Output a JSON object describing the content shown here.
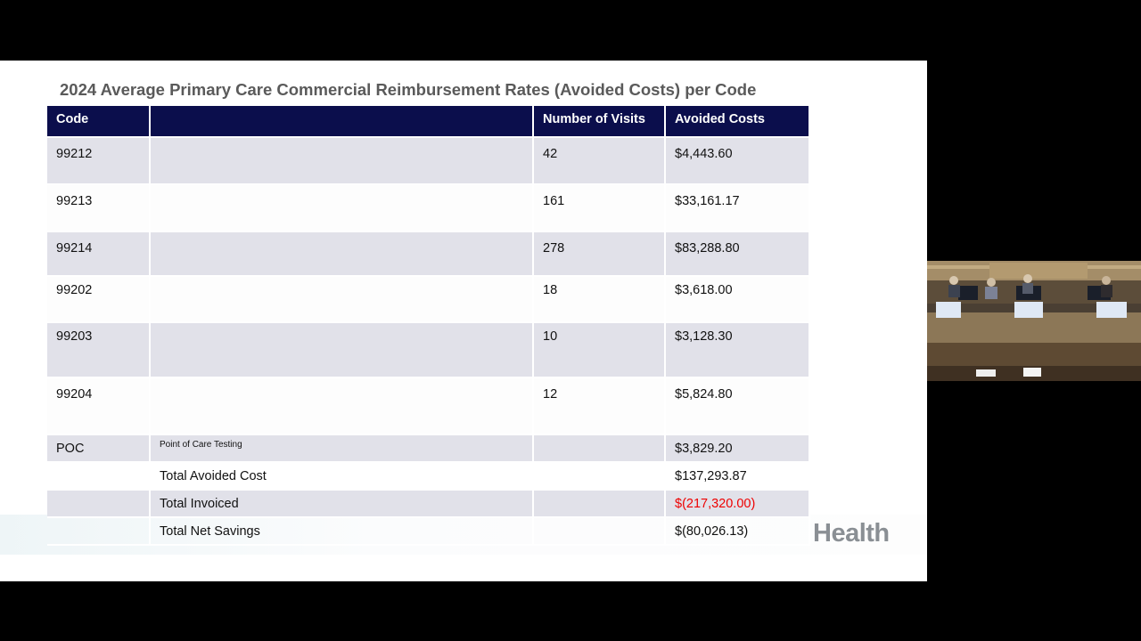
{
  "slide": {
    "title": "2024 Average Primary Care Commercial Reimbursement Rates (Avoided Costs) per Code",
    "logo_text": "Health"
  },
  "table": {
    "headers": [
      "Code",
      "",
      "Number of Visits",
      "Avoided Costs"
    ],
    "rows": [
      {
        "code": "99212",
        "desc": "",
        "visits": "42",
        "cost": "$4,443.60"
      },
      {
        "code": "99213",
        "desc": "",
        "visits": "161",
        "cost": "$33,161.17"
      },
      {
        "code": "99214",
        "desc": "",
        "visits": "278",
        "cost": "$83,288.80"
      },
      {
        "code": "99202",
        "desc": "",
        "visits": "18",
        "cost": "$3,618.00"
      },
      {
        "code": "99203",
        "desc": "",
        "visits": "10",
        "cost": "$3,128.30"
      },
      {
        "code": "99204",
        "desc": "",
        "visits": "12",
        "cost": "$5,824.80"
      },
      {
        "code": "POC",
        "desc": "Point of Care Testing",
        "visits": "",
        "cost": "$3,829.20"
      }
    ],
    "totals": [
      {
        "label": "Total Avoided Cost",
        "value": "$137,293.87"
      },
      {
        "label": "Total Invoiced",
        "value": "$(217,320.00)"
      },
      {
        "label": "Total Net Savings",
        "value": "$(80,026.13)"
      }
    ]
  },
  "colors": {
    "header_bg": "#0b0e4c",
    "negative": "#ee0000",
    "row_shade": "#e1e1e9"
  },
  "video": {
    "description_icon": "meeting-room-video-thumbnail"
  }
}
